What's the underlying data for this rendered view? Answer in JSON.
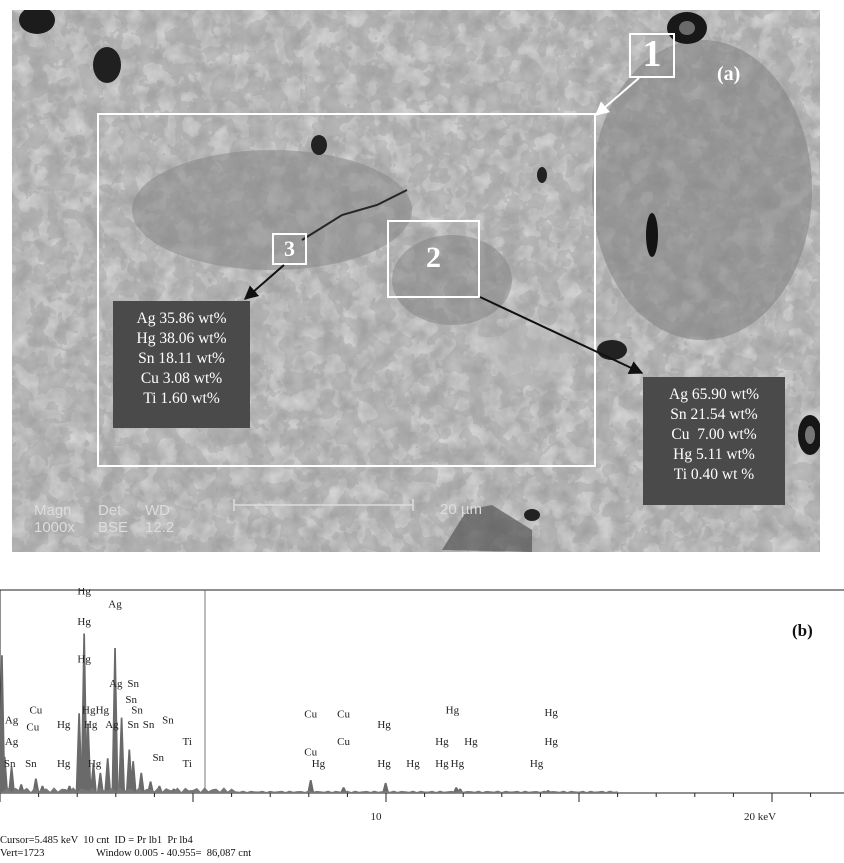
{
  "figure": {
    "panel_a": {
      "label": "(a)",
      "regions": [
        {
          "id": "1"
        },
        {
          "id": "2"
        },
        {
          "id": "3"
        }
      ],
      "composition_region3": [
        "Ag 35.86 wt%",
        "Hg 38.06 wt%",
        "Sn 18.11 wt%",
        "Cu 3.08 wt%",
        "Ti 1.60 wt%"
      ],
      "composition_region2": [
        "Ag 65.90 wt%",
        "Sn 21.54 wt%",
        "Cu  7.00 wt%",
        "Hg 5.11 wt%",
        "Ti 0.40 wt %"
      ],
      "info": {
        "magn_label": "Magn",
        "magn_value": "1000x",
        "det_label": "Det",
        "det_value": "BSE",
        "wd_label": "WD",
        "wd_value": "12.2",
        "scale_label": "20 µm"
      }
    },
    "panel_b": {
      "label": "(b)",
      "axis_ticks": [
        "10",
        "20 keV"
      ],
      "footer": {
        "line1": "Cursor=5.485 keV  10 cnt  ID = Pr lb1  Pr lb4",
        "line2_left": "Vert=1723",
        "line2_right": "Window 0.005 - 40.955=  86,087 cnt"
      }
    }
  },
  "chart_data": {
    "type": "bar",
    "xlabel": "keV",
    "xlim": [
      0,
      23
    ],
    "ticks": [
      10,
      20
    ],
    "peaks": [
      {
        "x": 0.05,
        "y": 95
      },
      {
        "x": 0.12,
        "y": 25
      },
      {
        "x": 0.3,
        "y": 18
      },
      {
        "x": 0.55,
        "y": 6
      },
      {
        "x": 0.93,
        "y": 10
      },
      {
        "x": 1.1,
        "y": 5
      },
      {
        "x": 1.8,
        "y": 5
      },
      {
        "x": 2.05,
        "y": 55
      },
      {
        "x": 2.18,
        "y": 110
      },
      {
        "x": 2.28,
        "y": 48
      },
      {
        "x": 2.42,
        "y": 20
      },
      {
        "x": 2.6,
        "y": 14
      },
      {
        "x": 2.79,
        "y": 24
      },
      {
        "x": 2.98,
        "y": 100
      },
      {
        "x": 3.15,
        "y": 52
      },
      {
        "x": 3.35,
        "y": 30
      },
      {
        "x": 3.45,
        "y": 22
      },
      {
        "x": 3.66,
        "y": 14
      },
      {
        "x": 3.9,
        "y": 8
      },
      {
        "x": 4.13,
        "y": 5
      },
      {
        "x": 4.5,
        "y": 3
      },
      {
        "x": 4.93,
        "y": 2
      },
      {
        "x": 8.05,
        "y": 9
      },
      {
        "x": 8.9,
        "y": 4
      },
      {
        "x": 9.99,
        "y": 7
      },
      {
        "x": 11.82,
        "y": 4
      },
      {
        "x": 11.92,
        "y": 3
      },
      {
        "x": 14.2,
        "y": 2
      }
    ],
    "annotations": [
      {
        "text": "Hg",
        "x": 2.18,
        "y": 137
      },
      {
        "text": "Ag",
        "x": 2.98,
        "y": 128
      },
      {
        "text": "Hg",
        "x": 2.18,
        "y": 116
      },
      {
        "text": "Hg",
        "x": 2.18,
        "y": 90
      },
      {
        "text": "Ag",
        "x": 3.0,
        "y": 73
      },
      {
        "text": "Sn",
        "x": 3.45,
        "y": 73
      },
      {
        "text": "Sn",
        "x": 3.4,
        "y": 62
      },
      {
        "text": "Cu",
        "x": 0.93,
        "y": 55
      },
      {
        "text": "Hg",
        "x": 2.3,
        "y": 55
      },
      {
        "text": "Hg",
        "x": 2.65,
        "y": 55
      },
      {
        "text": "Sn",
        "x": 3.55,
        "y": 55
      },
      {
        "text": "Ag",
        "x": 0.3,
        "y": 48
      },
      {
        "text": "Cu",
        "x": 0.85,
        "y": 43
      },
      {
        "text": "Hg",
        "x": 1.65,
        "y": 45
      },
      {
        "text": "Hg",
        "x": 2.35,
        "y": 45
      },
      {
        "text": "Ag",
        "x": 2.9,
        "y": 45
      },
      {
        "text": "Sn",
        "x": 3.45,
        "y": 45
      },
      {
        "text": "Sn",
        "x": 3.85,
        "y": 45
      },
      {
        "text": "Sn",
        "x": 4.35,
        "y": 48
      },
      {
        "text": "Ag",
        "x": 0.3,
        "y": 33
      },
      {
        "text": "Ti",
        "x": 4.85,
        "y": 33
      },
      {
        "text": "Sn",
        "x": 0.25,
        "y": 18
      },
      {
        "text": "Sn",
        "x": 0.8,
        "y": 18
      },
      {
        "text": "Hg",
        "x": 1.65,
        "y": 18
      },
      {
        "text": "Hg",
        "x": 2.45,
        "y": 18
      },
      {
        "text": "Sn",
        "x": 4.1,
        "y": 22
      },
      {
        "text": "Ti",
        "x": 4.85,
        "y": 18
      },
      {
        "text": "Cu",
        "x": 8.05,
        "y": 52
      },
      {
        "text": "Cu",
        "x": 8.9,
        "y": 52
      },
      {
        "text": "Hg",
        "x": 9.95,
        "y": 45
      },
      {
        "text": "Cu",
        "x": 8.9,
        "y": 33
      },
      {
        "text": "Cu",
        "x": 8.05,
        "y": 26
      },
      {
        "text": "Hg",
        "x": 8.25,
        "y": 18
      },
      {
        "text": "Hg",
        "x": 9.95,
        "y": 18
      },
      {
        "text": "Hg",
        "x": 10.7,
        "y": 18
      },
      {
        "text": "Hg",
        "x": 11.45,
        "y": 18
      },
      {
        "text": "Hg",
        "x": 11.85,
        "y": 18
      },
      {
        "text": "Hg",
        "x": 11.72,
        "y": 55
      },
      {
        "text": "Hg",
        "x": 11.45,
        "y": 33
      },
      {
        "text": "Hg",
        "x": 12.2,
        "y": 33
      },
      {
        "text": "Hg",
        "x": 14.28,
        "y": 53
      },
      {
        "text": "Hg",
        "x": 14.28,
        "y": 33
      },
      {
        "text": "Hg",
        "x": 13.9,
        "y": 18
      }
    ]
  },
  "colors": {
    "sem_matrix": "#9a9a9a",
    "sem_light_phase": "#b9b9b9",
    "sem_dark_phase": "#7c7c7c",
    "box_fill": "#4a4a4a",
    "peak_fill": "#6a6a6a"
  }
}
